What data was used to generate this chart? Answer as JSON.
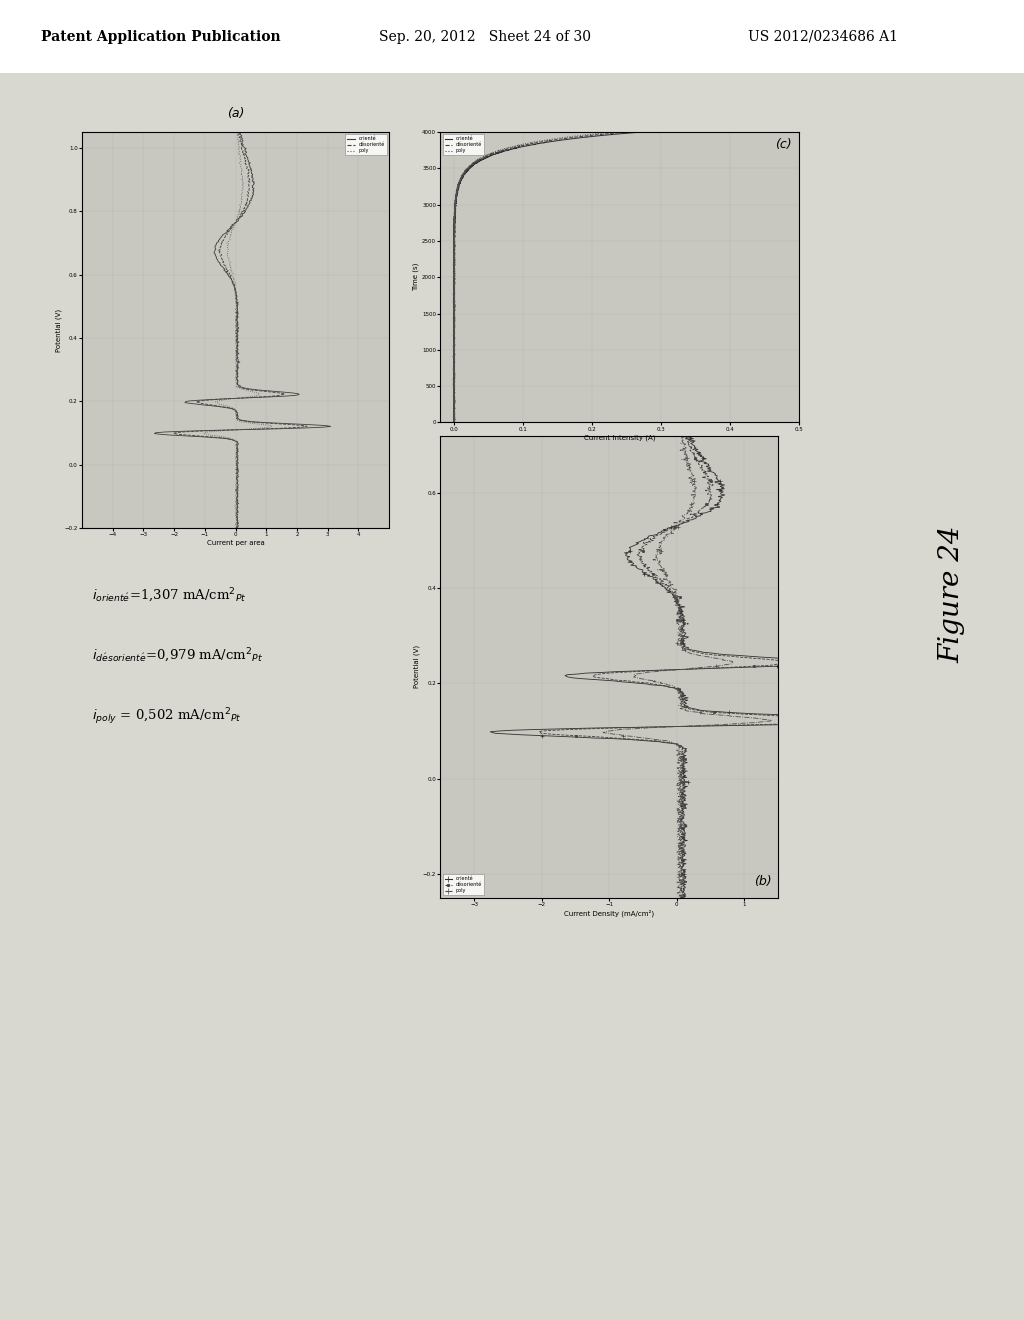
{
  "header_left": "Patent Application Publication",
  "header_mid": "Sep. 20, 2012   Sheet 24 of 30",
  "header_right": "US 2012/0234686 A1",
  "figure_label": "Figure 24",
  "bg_color": "#d8d8d0",
  "plot_bg": "#c8c8c0",
  "white_bg": "#f0f0ea",
  "grid_color": "#b0b0a8",
  "header_bg": "#ffffff"
}
